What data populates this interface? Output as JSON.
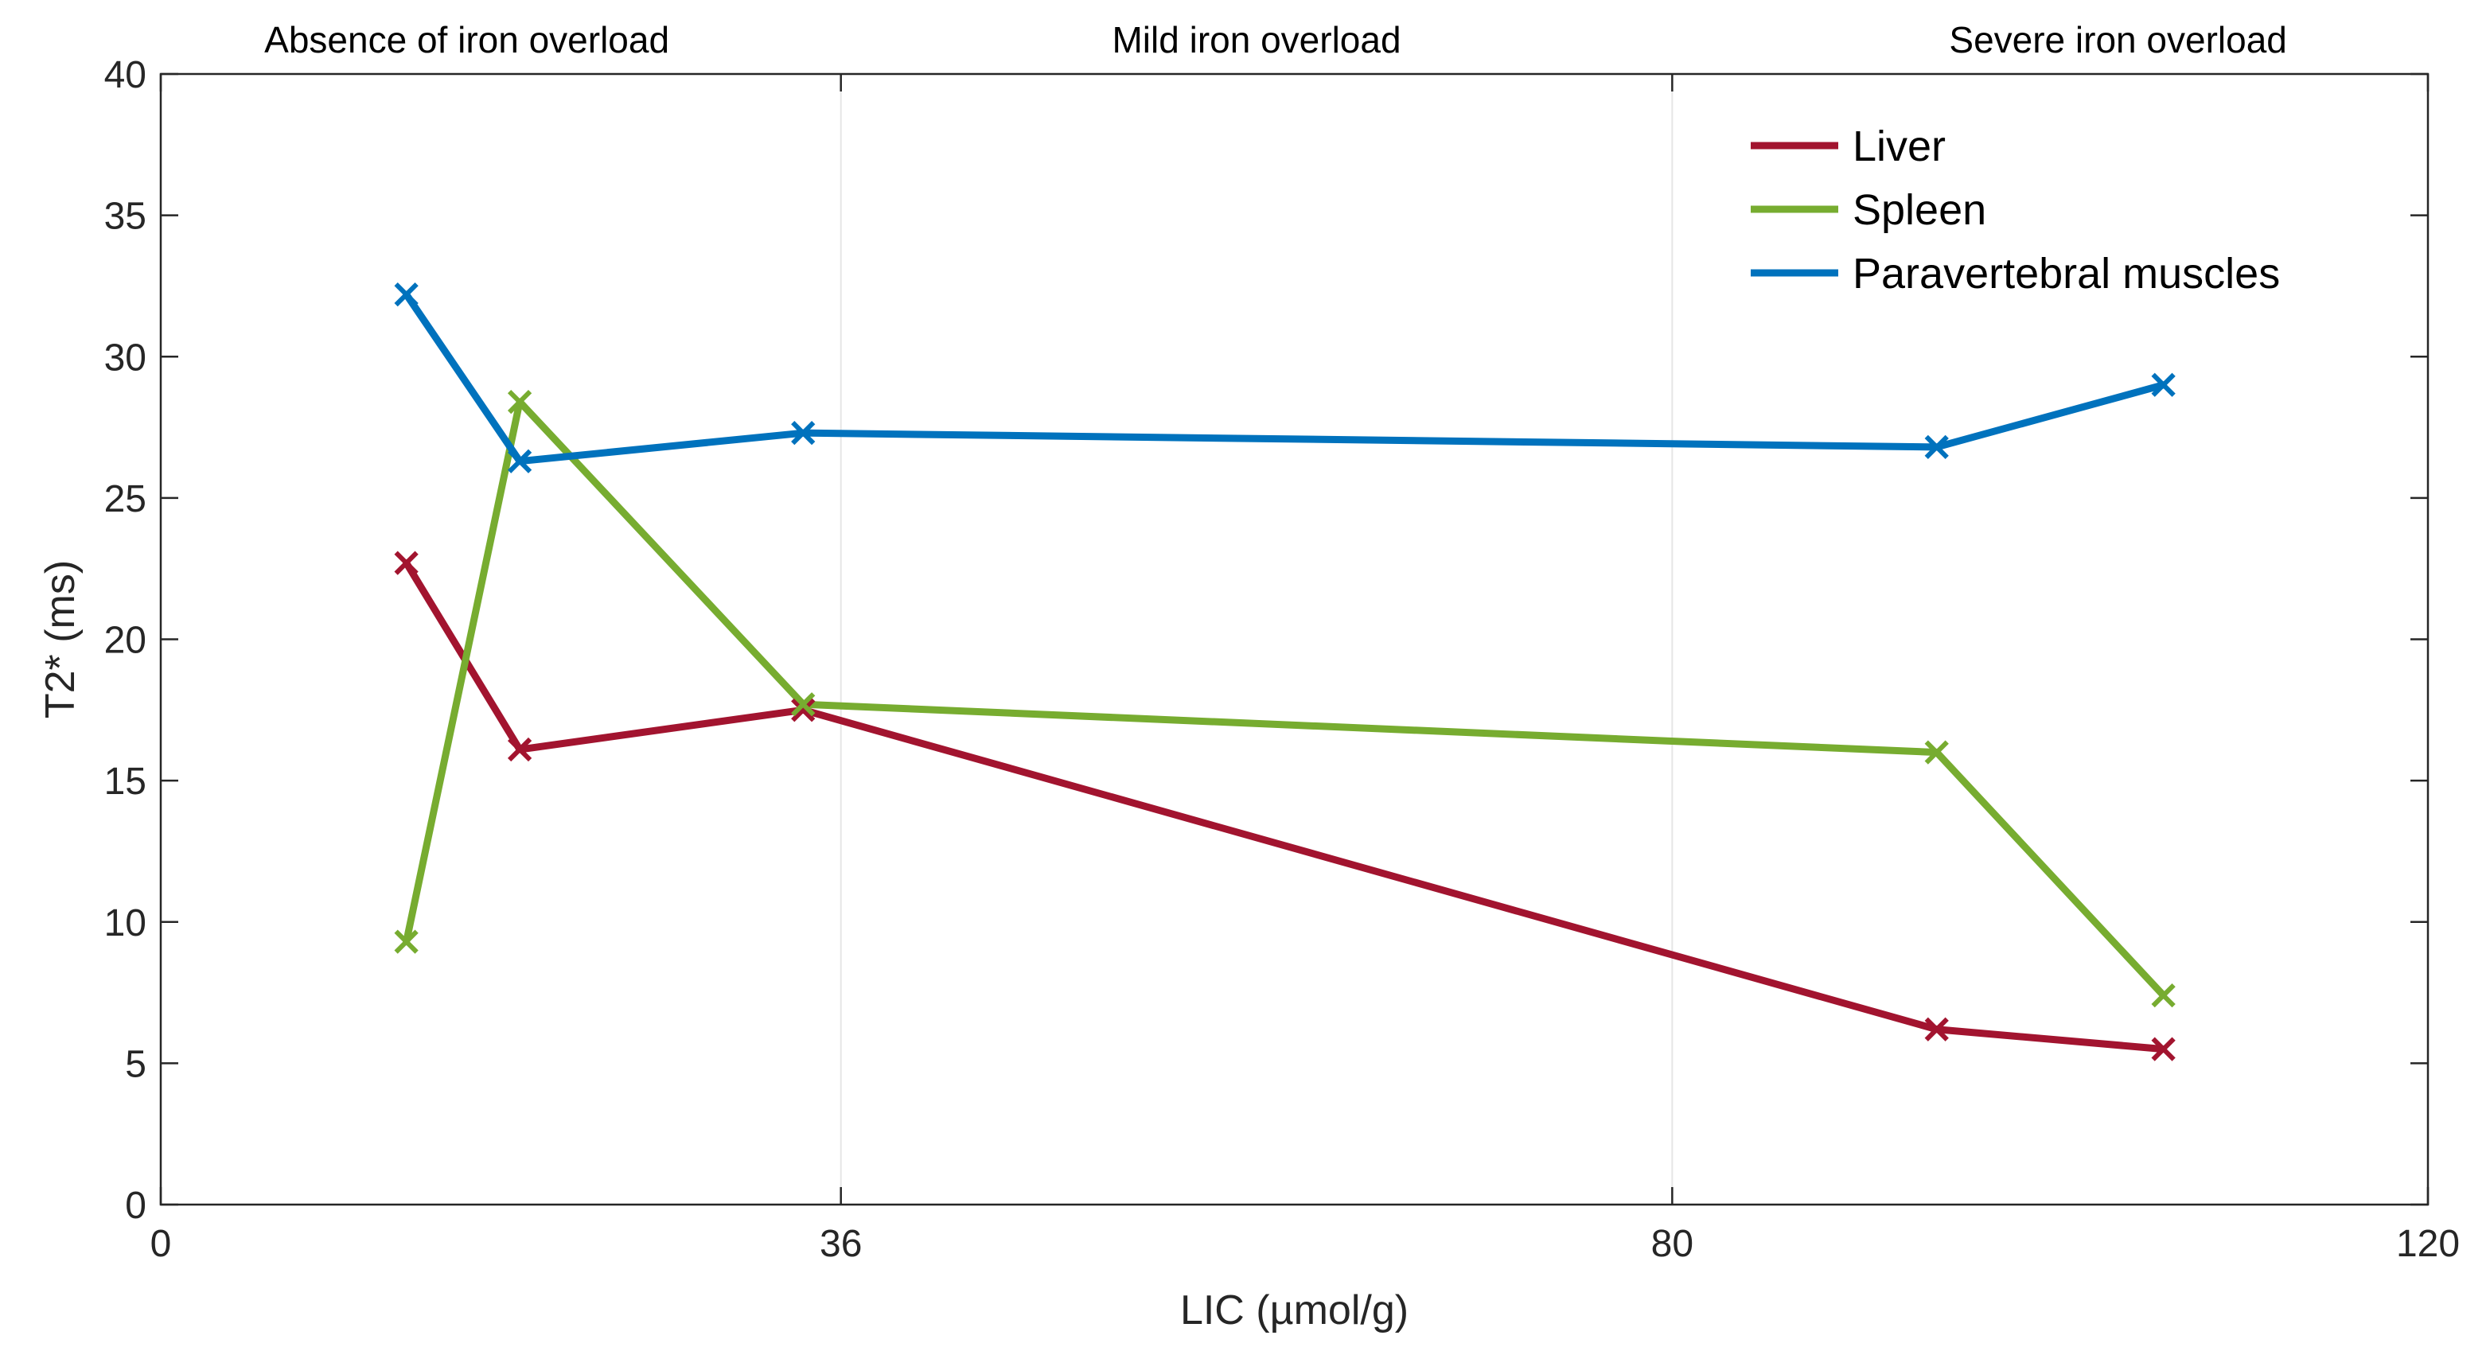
{
  "chart_data": {
    "type": "line",
    "title": "",
    "xlabel": "LIC (µmol/g)",
    "ylabel": "T2* (ms)",
    "xlim": [
      0,
      120
    ],
    "ylim": [
      0,
      40
    ],
    "xticks": [
      0,
      36,
      80,
      120
    ],
    "xtick_labels": [
      "0",
      "36",
      "80",
      "120"
    ],
    "yticks": [
      0,
      5,
      10,
      15,
      20,
      25,
      30,
      35,
      40
    ],
    "ytick_labels": [
      "0",
      "5",
      "10",
      "15",
      "20",
      "25",
      "30",
      "35",
      "40"
    ],
    "grid": "vertical lines at x=36 and x=80 only",
    "legend_position": "top-right",
    "regions": [
      {
        "label": "Absence of iron overload",
        "x_from": 0,
        "x_to": 36
      },
      {
        "label": "Mild iron overload",
        "x_from": 36,
        "x_to": 80
      },
      {
        "label": "Severe iron overload",
        "x_from": 80,
        "x_to": 120
      }
    ],
    "series": [
      {
        "name": "Liver",
        "color": "#a2142f",
        "marker": "x",
        "x": [
          13,
          19,
          34,
          94,
          106
        ],
        "y": [
          22.7,
          16.1,
          17.5,
          6.2,
          5.5
        ]
      },
      {
        "name": "Spleen",
        "color": "#77ac30",
        "marker": "x",
        "x": [
          13,
          19,
          34,
          94,
          106
        ],
        "y": [
          9.3,
          28.4,
          17.7,
          16.0,
          7.4
        ]
      },
      {
        "name": "Paravertebral muscles",
        "color": "#0072bd",
        "marker": "x",
        "x": [
          13,
          19,
          34,
          94,
          106
        ],
        "y": [
          32.2,
          26.3,
          27.3,
          26.8,
          29.0
        ]
      }
    ]
  }
}
